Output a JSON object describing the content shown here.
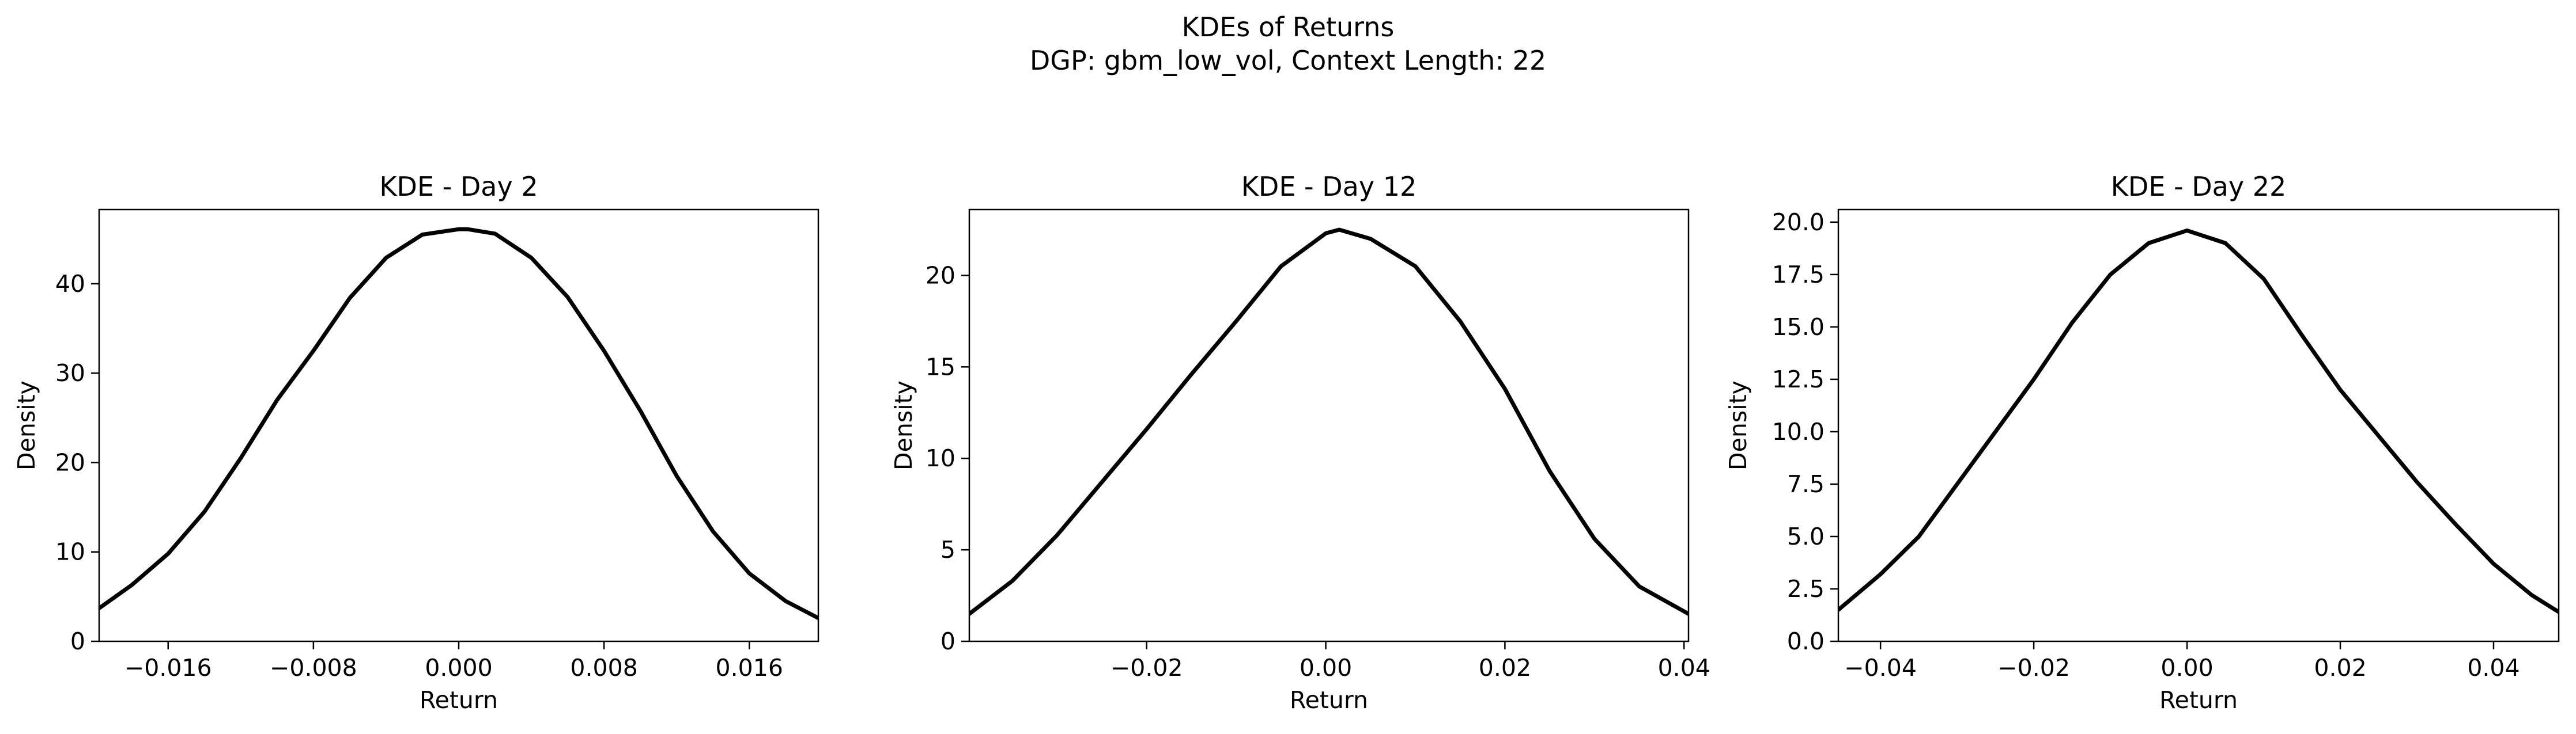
{
  "figure": {
    "suptitle_line1": "KDEs of Returns",
    "suptitle_line2": "DGP: gbm_low_vol, Context Length: 22"
  },
  "chart_data": [
    {
      "type": "line",
      "title": "KDE - Day 2",
      "xlabel": "Return",
      "ylabel": "Density",
      "xlim": [
        -0.0198,
        0.0198
      ],
      "ylim": [
        0,
        48.3
      ],
      "xticks": [
        -0.016,
        -0.008,
        0.0,
        0.008,
        0.016
      ],
      "xtick_labels": [
        "−0.016",
        "−0.008",
        "0.000",
        "0.008",
        "0.016"
      ],
      "yticks": [
        0,
        10,
        20,
        30,
        40
      ],
      "ytick_labels": [
        "0",
        "10",
        "20",
        "30",
        "40"
      ],
      "grid": false,
      "line_color": "#000000",
      "series": [
        {
          "x": [
            -0.0198,
            -0.018,
            -0.016,
            -0.014,
            -0.012,
            -0.01,
            -0.008,
            -0.006,
            -0.004,
            -0.002,
            0.0,
            0.0005,
            0.002,
            0.004,
            0.006,
            0.008,
            0.01,
            0.012,
            0.014,
            0.016,
            0.018,
            0.0198
          ],
          "values": [
            3.7,
            6.3,
            9.8,
            14.5,
            20.5,
            27.0,
            32.5,
            38.4,
            42.9,
            45.5,
            46.1,
            46.1,
            45.6,
            42.9,
            38.5,
            32.5,
            25.8,
            18.5,
            12.3,
            7.6,
            4.5,
            2.6
          ]
        }
      ]
    },
    {
      "type": "line",
      "title": "KDE - Day 12",
      "xlabel": "Return",
      "ylabel": "Density",
      "xlim": [
        -0.0398,
        0.0405
      ],
      "ylim": [
        0,
        23.6
      ],
      "xticks": [
        -0.02,
        0.0,
        0.02,
        0.04
      ],
      "xtick_labels": [
        "−0.02",
        "0.00",
        "0.02",
        "0.04"
      ],
      "yticks": [
        0,
        5,
        10,
        15,
        20
      ],
      "ytick_labels": [
        "0",
        "5",
        "10",
        "15",
        "20"
      ],
      "grid": false,
      "line_color": "#000000",
      "series": [
        {
          "x": [
            -0.0398,
            -0.035,
            -0.03,
            -0.025,
            -0.02,
            -0.015,
            -0.01,
            -0.005,
            0.0,
            0.0015,
            0.005,
            0.01,
            0.015,
            0.02,
            0.025,
            0.03,
            0.035,
            0.0405
          ],
          "values": [
            1.5,
            3.3,
            5.8,
            8.7,
            11.6,
            14.6,
            17.5,
            20.5,
            22.3,
            22.5,
            22.0,
            20.5,
            17.5,
            13.8,
            9.3,
            5.6,
            3.0,
            1.5
          ]
        }
      ]
    },
    {
      "type": "line",
      "title": "KDE - Day 22",
      "xlabel": "Return",
      "ylabel": "Density",
      "xlim": [
        -0.0455,
        0.0485
      ],
      "ylim": [
        0,
        20.6
      ],
      "xticks": [
        -0.04,
        -0.02,
        0.0,
        0.02,
        0.04
      ],
      "xtick_labels": [
        "−0.04",
        "−0.02",
        "0.00",
        "0.02",
        "0.04"
      ],
      "yticks": [
        0.0,
        2.5,
        5.0,
        7.5,
        10.0,
        12.5,
        15.0,
        17.5,
        20.0
      ],
      "ytick_labels": [
        "0.0",
        "2.5",
        "5.0",
        "7.5",
        "10.0",
        "12.5",
        "15.0",
        "17.5",
        "20.0"
      ],
      "grid": false,
      "line_color": "#000000",
      "series": [
        {
          "x": [
            -0.0455,
            -0.04,
            -0.035,
            -0.03,
            -0.025,
            -0.02,
            -0.015,
            -0.01,
            -0.005,
            0.0,
            0.005,
            0.01,
            0.015,
            0.02,
            0.025,
            0.03,
            0.035,
            0.04,
            0.045,
            0.0485
          ],
          "values": [
            1.5,
            3.2,
            5.0,
            7.5,
            10.0,
            12.5,
            15.2,
            17.5,
            19.0,
            19.6,
            19.0,
            17.3,
            14.6,
            12.0,
            9.8,
            7.6,
            5.6,
            3.7,
            2.2,
            1.4
          ]
        }
      ]
    }
  ]
}
